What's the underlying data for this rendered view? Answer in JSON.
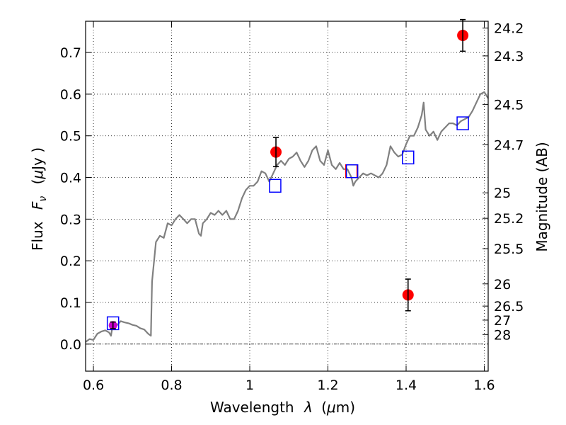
{
  "chart_data": {
    "type": "scatter",
    "xlabel": "Wavelength",
    "xlabel_symbol": "λ",
    "xlabel_unit_prefix": "(",
    "xlabel_unit_mu": "μ",
    "xlabel_unit_suffix": "m)",
    "ylabel": "Flux",
    "ylabel_symbol": "F",
    "ylabel_subscript": "ν",
    "ylabel_unit_prefix": "(",
    "ylabel_unit_mu": "μ",
    "ylabel_unit_suffix": "Jy )",
    "ylabel_right": "Magnitude (AB)",
    "xlim": [
      0.58,
      1.61
    ],
    "ylim": [
      -0.065,
      0.775
    ],
    "x_ticks": [
      0.6,
      0.8,
      1.0,
      1.2,
      1.4,
      1.6
    ],
    "x_tick_labels": [
      "0.6",
      "0.8",
      "1",
      "1.2",
      "1.4",
      "1.6"
    ],
    "y_ticks": [
      0.0,
      0.1,
      0.2,
      0.3,
      0.4,
      0.5,
      0.6,
      0.7
    ],
    "y_tick_labels": [
      "0.0",
      "0.1",
      "0.2",
      "0.3",
      "0.4",
      "0.5",
      "0.6",
      "0.7"
    ],
    "right_ticks": [
      24.2,
      24.3,
      24.5,
      24.7,
      25,
      25.2,
      25.5,
      26,
      26.5,
      27,
      28
    ],
    "right_tick_labels": [
      "24.2",
      "24.3",
      "24.5",
      "24.7",
      "25",
      "25.2",
      "25.5",
      "26",
      "26.5",
      "27",
      "28"
    ],
    "grid": true,
    "zero_line": true,
    "colors": {
      "template": "#808080",
      "observed": "#ff0000",
      "model": "#0000ff",
      "model_alt": "#ff0000",
      "error_bar": "#000000",
      "first_point": "#cc00cc"
    },
    "series": [
      {
        "kind": "line",
        "x": [
          0.58,
          0.59,
          0.6,
          0.61,
          0.62,
          0.63,
          0.64,
          0.645,
          0.65,
          0.66,
          0.67,
          0.68,
          0.69,
          0.7,
          0.71,
          0.72,
          0.73,
          0.74,
          0.747,
          0.75,
          0.76,
          0.77,
          0.78,
          0.79,
          0.8,
          0.81,
          0.82,
          0.83,
          0.84,
          0.85,
          0.86,
          0.87,
          0.875,
          0.88,
          0.89,
          0.9,
          0.91,
          0.92,
          0.93,
          0.94,
          0.95,
          0.96,
          0.97,
          0.98,
          0.99,
          1.0,
          1.01,
          1.02,
          1.03,
          1.04,
          1.05,
          1.06,
          1.07,
          1.08,
          1.09,
          1.1,
          1.11,
          1.12,
          1.13,
          1.14,
          1.15,
          1.16,
          1.17,
          1.18,
          1.19,
          1.2,
          1.21,
          1.22,
          1.23,
          1.24,
          1.25,
          1.26,
          1.265,
          1.27,
          1.28,
          1.29,
          1.3,
          1.31,
          1.32,
          1.33,
          1.34,
          1.35,
          1.36,
          1.37,
          1.38,
          1.39,
          1.4,
          1.41,
          1.42,
          1.43,
          1.44,
          1.445,
          1.45,
          1.46,
          1.47,
          1.48,
          1.49,
          1.5,
          1.51,
          1.52,
          1.53,
          1.54,
          1.55,
          1.56,
          1.57,
          1.58,
          1.59,
          1.6,
          1.61
        ],
        "y": [
          0.005,
          0.012,
          0.01,
          0.025,
          0.03,
          0.033,
          0.028,
          0.02,
          0.05,
          0.045,
          0.055,
          0.052,
          0.05,
          0.046,
          0.044,
          0.038,
          0.035,
          0.025,
          0.02,
          0.15,
          0.245,
          0.26,
          0.255,
          0.29,
          0.285,
          0.3,
          0.31,
          0.3,
          0.29,
          0.3,
          0.3,
          0.265,
          0.26,
          0.29,
          0.3,
          0.315,
          0.31,
          0.32,
          0.31,
          0.32,
          0.3,
          0.3,
          0.32,
          0.35,
          0.37,
          0.38,
          0.38,
          0.39,
          0.415,
          0.41,
          0.39,
          0.41,
          0.43,
          0.44,
          0.43,
          0.445,
          0.45,
          0.46,
          0.44,
          0.425,
          0.44,
          0.465,
          0.475,
          0.44,
          0.43,
          0.465,
          0.43,
          0.42,
          0.435,
          0.42,
          0.42,
          0.4,
          0.38,
          0.39,
          0.4,
          0.41,
          0.405,
          0.41,
          0.405,
          0.4,
          0.41,
          0.43,
          0.475,
          0.46,
          0.45,
          0.455,
          0.48,
          0.5,
          0.5,
          0.52,
          0.55,
          0.58,
          0.515,
          0.5,
          0.51,
          0.49,
          0.51,
          0.52,
          0.53,
          0.53,
          0.525,
          0.535,
          0.54,
          0.545,
          0.56,
          0.58,
          0.6,
          0.605,
          0.59
        ]
      },
      {
        "kind": "model",
        "x": [
          0.65,
          1.065,
          1.26,
          1.405,
          1.545
        ],
        "y": [
          0.05,
          0.38,
          0.415,
          0.448,
          0.53
        ],
        "alt_index": 2
      },
      {
        "kind": "observed",
        "x": [
          1.067,
          1.405,
          1.545
        ],
        "y": [
          0.461,
          0.118,
          0.741
        ],
        "err": [
          0.035,
          0.038,
          0.038
        ]
      },
      {
        "kind": "first-point",
        "x": [
          0.65
        ],
        "y": [
          0.045
        ],
        "err": [
          0.008
        ]
      }
    ]
  }
}
